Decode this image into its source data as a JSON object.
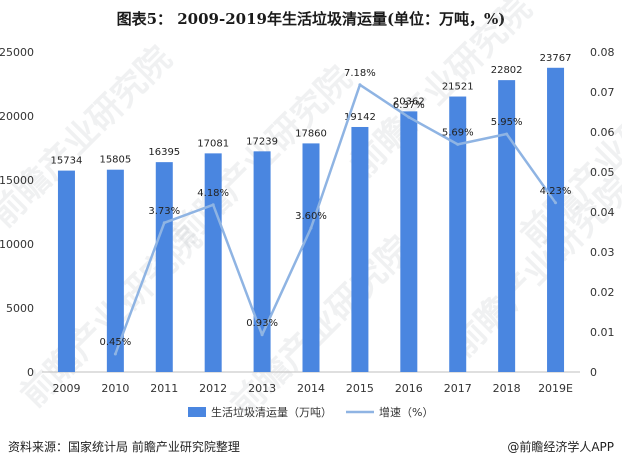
{
  "title": "图表5： 2009-2019年生活垃圾清运量(单位：万吨，%)",
  "source": "资料来源：国家统计局 前瞻产业研究院整理",
  "brand": "@前瞻经济学人APP",
  "watermark": "前瞻产业研究院",
  "colors": {
    "bar": "#4a86e0",
    "line": "#8fb4e3",
    "grid": "#d9d9d9",
    "text": "#333333"
  },
  "chart_data": {
    "type": "bar",
    "title": "图表5： 2009-2019年生活垃圾清运量(单位：万吨，%)",
    "categories": [
      "2009",
      "2010",
      "2011",
      "2012",
      "2013",
      "2014",
      "2015",
      "2016",
      "2017",
      "2018",
      "2019E"
    ],
    "series": [
      {
        "name": "生活垃圾清运量（万吨）",
        "type": "bar",
        "axis": "left",
        "values": [
          15734,
          15805,
          16395,
          17081,
          17239,
          17860,
          19142,
          20362,
          21521,
          22802,
          23767
        ],
        "labels": [
          "15734",
          "15805",
          "16395",
          "17081",
          "17239",
          "17860",
          "19142",
          "20362",
          "21521",
          "22802",
          "23767"
        ]
      },
      {
        "name": "增速（%）",
        "type": "line",
        "axis": "right",
        "values": [
          null,
          0.0045,
          0.0373,
          0.0418,
          0.0093,
          0.036,
          0.0718,
          0.0637,
          0.0569,
          0.0595,
          0.0423
        ],
        "labels": [
          "",
          "0.45%",
          "3.73%",
          "4.18%",
          "0.93%",
          "3.60%",
          "7.18%",
          "6.37%",
          "5.69%",
          "5.95%",
          "4.23%"
        ]
      }
    ],
    "y_left": {
      "min": 0,
      "max": 25000,
      "ticks": [
        "0",
        "5000",
        "10000",
        "15000",
        "20000",
        "25000"
      ]
    },
    "y_right": {
      "min": 0,
      "max": 0.08,
      "ticks": [
        "0",
        "0.01",
        "0.02",
        "0.03",
        "0.04",
        "0.05",
        "0.06",
        "0.07",
        "0.08"
      ]
    },
    "legend_position": "bottom",
    "grid": false
  }
}
